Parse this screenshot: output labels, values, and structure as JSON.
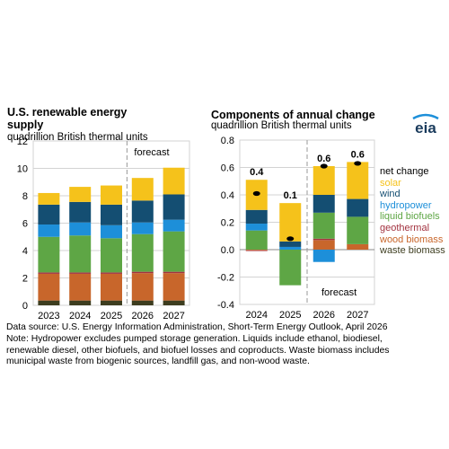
{
  "colors": {
    "waste_biomass": "#3d3d1f",
    "wood_biomass": "#c8662b",
    "geothermal": "#a33340",
    "liquid_biofuels": "#5ea645",
    "hydropower": "#1d8fd9",
    "wind": "#144e72",
    "solar": "#f5c21b",
    "net_change": "#000000",
    "grid": "#d3d3d3",
    "forecast_line": "#999999"
  },
  "left_panel": {
    "title_line1": "U.S. renewable energy",
    "title_line2": "supply",
    "unit": "quadrillion British thermal units",
    "forecast_label": "forecast"
  },
  "right_panel": {
    "title": "Components of annual change",
    "unit": "quadrillion British thermal units",
    "forecast_label": "forecast",
    "logo_text": "eia"
  },
  "legend": [
    {
      "key": "net_change",
      "label": "net change"
    },
    {
      "key": "solar",
      "label": "solar"
    },
    {
      "key": "wind",
      "label": "wind"
    },
    {
      "key": "hydropower",
      "label": "hydropower"
    },
    {
      "key": "liquid_biofuels",
      "label": "liquid biofuels"
    },
    {
      "key": "geothermal",
      "label": "geothermal"
    },
    {
      "key": "wood_biomass",
      "label": "wood biomass"
    },
    {
      "key": "waste_biomass",
      "label": "waste biomass"
    }
  ],
  "footer": {
    "source": "Data source: U.S. Energy Information Administration, Short-Term Energy Outlook, April 2026",
    "note_line1": "Note: Hydropower excludes pumped storage generation. Liquids include ethanol, biodiesel,",
    "note_line2": "renewable diesel, other biofuels, and biofuel losses and coproducts. Waste biomass includes",
    "note_line3": "municipal waste from biogenic sources, landfill gas, and non-wood waste."
  },
  "chart_data": [
    {
      "type": "bar",
      "stacked": true,
      "title": "U.S. renewable energy supply",
      "ylabel": "quadrillion British thermal units",
      "categories": [
        "2023",
        "2024",
        "2025",
        "2026",
        "2027"
      ],
      "ylim": [
        0,
        12
      ],
      "yticks": [
        0,
        2,
        4,
        6,
        8,
        10,
        12
      ],
      "forecast_start": "2026",
      "grid": true,
      "series": [
        {
          "name": "waste biomass",
          "key": "waste_biomass",
          "values": [
            0.35,
            0.35,
            0.35,
            0.35,
            0.35
          ]
        },
        {
          "name": "wood biomass",
          "key": "wood_biomass",
          "values": [
            1.95,
            1.95,
            1.95,
            2.0,
            2.0
          ]
        },
        {
          "name": "geothermal",
          "key": "geothermal",
          "values": [
            0.1,
            0.1,
            0.1,
            0.1,
            0.1
          ]
        },
        {
          "name": "liquid biofuels",
          "key": "liquid_biofuels",
          "values": [
            2.6,
            2.7,
            2.5,
            2.75,
            2.95
          ]
        },
        {
          "name": "hydropower",
          "key": "hydropower",
          "values": [
            0.9,
            0.95,
            0.95,
            0.85,
            0.85
          ]
        },
        {
          "name": "wind",
          "key": "wind",
          "values": [
            1.45,
            1.5,
            1.5,
            1.6,
            1.85
          ]
        },
        {
          "name": "solar",
          "key": "solar",
          "values": [
            0.85,
            1.1,
            1.4,
            1.65,
            1.95
          ]
        }
      ]
    },
    {
      "type": "bar",
      "stacked": true,
      "title": "Components of annual change",
      "ylabel": "quadrillion British thermal units",
      "categories": [
        "2024",
        "2025",
        "2026",
        "2027"
      ],
      "ylim": [
        -0.4,
        0.8
      ],
      "yticks": [
        -0.4,
        -0.2,
        0.0,
        0.2,
        0.4,
        0.6,
        0.8
      ],
      "ytick_labels": [
        "-0.4",
        "-0.2",
        "0.0",
        "0.2",
        "0.4",
        "0.6",
        "0.8"
      ],
      "forecast_start": "2026",
      "grid": true,
      "net_change": [
        0.41,
        0.08,
        0.61,
        0.63
      ],
      "net_change_labels": [
        "0.4",
        "0.1",
        "0.6",
        "0.6"
      ],
      "series": [
        {
          "name": "waste biomass",
          "key": "waste_biomass",
          "values": [
            0.0,
            0.0,
            0.0,
            0.0
          ]
        },
        {
          "name": "wood biomass",
          "key": "wood_biomass",
          "values": [
            -0.005,
            0.0,
            0.07,
            0.04
          ]
        },
        {
          "name": "geothermal",
          "key": "geothermal",
          "values": [
            -0.005,
            0.0,
            0.01,
            0.0
          ]
        },
        {
          "name": "liquid biofuels",
          "key": "liquid_biofuels",
          "values": [
            0.14,
            -0.26,
            0.19,
            0.2
          ]
        },
        {
          "name": "hydropower",
          "key": "hydropower",
          "values": [
            0.05,
            0.02,
            -0.09,
            0.0
          ]
        },
        {
          "name": "wind",
          "key": "wind",
          "values": [
            0.1,
            0.04,
            0.13,
            0.13
          ]
        },
        {
          "name": "solar",
          "key": "solar",
          "values": [
            0.22,
            0.28,
            0.21,
            0.27
          ]
        }
      ]
    }
  ]
}
